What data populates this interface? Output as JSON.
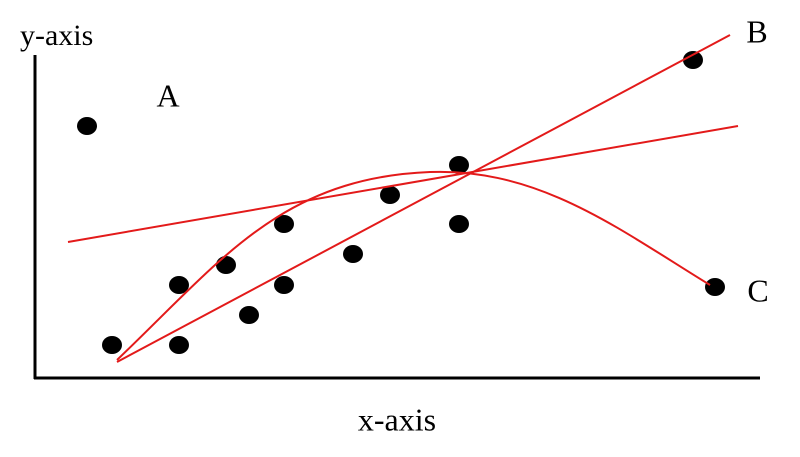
{
  "y_axis_label": "y-axis",
  "x_axis_label": "x-axis",
  "labels": {
    "a": "A",
    "b": "B",
    "c": "C"
  }
}
